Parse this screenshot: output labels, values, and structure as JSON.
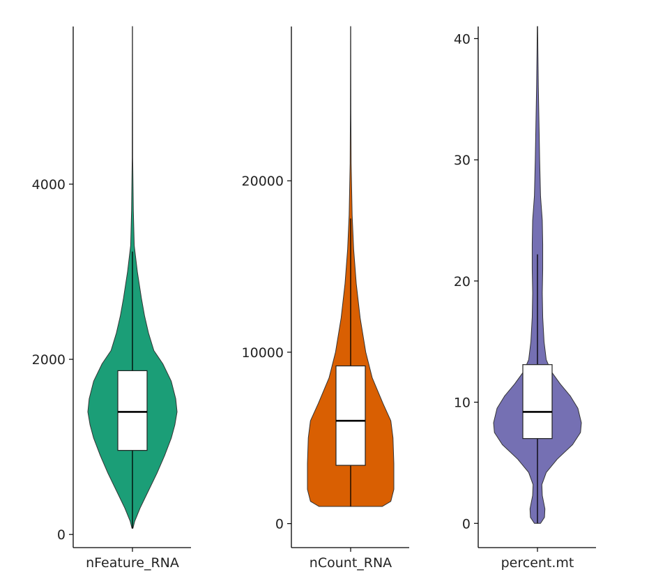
{
  "chart_data": [
    {
      "type": "violin",
      "xlabel": "nFeature_RNA",
      "color": "#1b9e77",
      "ylim": [
        -150,
        5800
      ],
      "yticks": [
        0,
        2000,
        4000
      ],
      "ytick_labels": [
        "0",
        "2000",
        "4000"
      ],
      "box": {
        "whisker_low": 70,
        "q1": 960,
        "median": 1400,
        "q3": 1870,
        "whisker_high": 3230
      },
      "range": [
        70,
        5800
      ],
      "density": [
        {
          "y": 70,
          "w": 0.01
        },
        {
          "y": 150,
          "w": 0.05
        },
        {
          "y": 300,
          "w": 0.17
        },
        {
          "y": 500,
          "w": 0.36
        },
        {
          "y": 700,
          "w": 0.55
        },
        {
          "y": 900,
          "w": 0.72
        },
        {
          "y": 1100,
          "w": 0.87
        },
        {
          "y": 1250,
          "w": 0.95
        },
        {
          "y": 1400,
          "w": 1.0
        },
        {
          "y": 1550,
          "w": 0.97
        },
        {
          "y": 1750,
          "w": 0.87
        },
        {
          "y": 1950,
          "w": 0.68
        },
        {
          "y": 2100,
          "w": 0.48
        },
        {
          "y": 2300,
          "w": 0.36
        },
        {
          "y": 2500,
          "w": 0.27
        },
        {
          "y": 2700,
          "w": 0.2
        },
        {
          "y": 3000,
          "w": 0.11
        },
        {
          "y": 3300,
          "w": 0.04
        },
        {
          "y": 3700,
          "w": 0.02
        },
        {
          "y": 4300,
          "w": 0.006
        },
        {
          "y": 5800,
          "w": 0.003
        }
      ]
    },
    {
      "type": "violin",
      "xlabel": "nCount_RNA",
      "color": "#d95f02",
      "ylim": [
        -1400,
        29000
      ],
      "yticks": [
        0,
        10000,
        20000
      ],
      "ytick_labels": [
        "0",
        "10000",
        "20000"
      ],
      "box": {
        "whisker_low": 1000,
        "q1": 3400,
        "median": 6000,
        "q3": 9200,
        "whisker_high": 17800
      },
      "range": [
        1000,
        29000
      ],
      "density": [
        {
          "y": 1000,
          "w": 0.73
        },
        {
          "y": 1300,
          "w": 0.93
        },
        {
          "y": 2000,
          "w": 1.0
        },
        {
          "y": 3500,
          "w": 1.0
        },
        {
          "y": 5000,
          "w": 0.98
        },
        {
          "y": 6000,
          "w": 0.93
        },
        {
          "y": 7000,
          "w": 0.75
        },
        {
          "y": 8500,
          "w": 0.5
        },
        {
          "y": 10000,
          "w": 0.35
        },
        {
          "y": 12000,
          "w": 0.22
        },
        {
          "y": 14000,
          "w": 0.13
        },
        {
          "y": 16000,
          "w": 0.07
        },
        {
          "y": 18000,
          "w": 0.035
        },
        {
          "y": 21000,
          "w": 0.012
        },
        {
          "y": 24000,
          "w": 0.006
        },
        {
          "y": 29000,
          "w": 0.003
        }
      ]
    },
    {
      "type": "violin",
      "xlabel": "percent.mt",
      "color": "#7570b3",
      "ylim": [
        -2,
        41
      ],
      "yticks": [
        0,
        10,
        20,
        30,
        40
      ],
      "ytick_labels": [
        "0",
        "10",
        "20",
        "30",
        "40"
      ],
      "box": {
        "whisker_low": 0,
        "q1": 7,
        "median": 9.2,
        "q3": 13.1,
        "whisker_high": 22.2
      },
      "range": [
        0,
        41
      ],
      "density": [
        {
          "y": 0,
          "w": 0.07
        },
        {
          "y": 0.5,
          "w": 0.16
        },
        {
          "y": 1.2,
          "w": 0.17
        },
        {
          "y": 2.3,
          "w": 0.11
        },
        {
          "y": 3.2,
          "w": 0.1
        },
        {
          "y": 4.2,
          "w": 0.2
        },
        {
          "y": 5.3,
          "w": 0.45
        },
        {
          "y": 6.5,
          "w": 0.8
        },
        {
          "y": 7.5,
          "w": 0.98
        },
        {
          "y": 8.3,
          "w": 1.0
        },
        {
          "y": 9.5,
          "w": 0.92
        },
        {
          "y": 10.5,
          "w": 0.75
        },
        {
          "y": 11.5,
          "w": 0.52
        },
        {
          "y": 12.5,
          "w": 0.32
        },
        {
          "y": 13.5,
          "w": 0.2
        },
        {
          "y": 15,
          "w": 0.15
        },
        {
          "y": 17,
          "w": 0.12
        },
        {
          "y": 19,
          "w": 0.11
        },
        {
          "y": 21,
          "w": 0.12
        },
        {
          "y": 23,
          "w": 0.12
        },
        {
          "y": 25,
          "w": 0.11
        },
        {
          "y": 27,
          "w": 0.07
        },
        {
          "y": 30,
          "w": 0.05
        },
        {
          "y": 33,
          "w": 0.035
        },
        {
          "y": 36,
          "w": 0.02
        },
        {
          "y": 39,
          "w": 0.01
        },
        {
          "y": 41,
          "w": 0.005
        }
      ]
    }
  ]
}
